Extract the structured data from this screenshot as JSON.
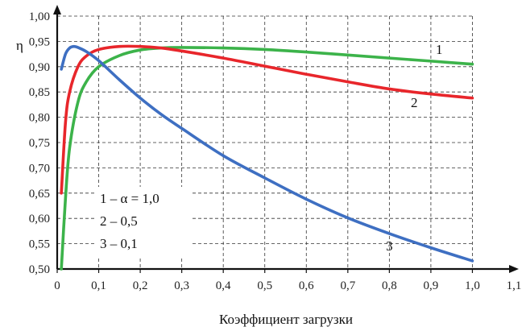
{
  "chart_data": {
    "type": "line",
    "xlabel": "Коэффициент загрузки",
    "ylabel": "η",
    "xlim": [
      0,
      1.1
    ],
    "ylim": [
      0.5,
      1.0
    ],
    "xticks": [
      "0",
      "0,1",
      "0,2",
      "0,3",
      "0,4",
      "0,5",
      "0,6",
      "0,7",
      "0,8",
      "0,9",
      "1,0",
      "1,1"
    ],
    "yticks": [
      "0,50",
      "0,55",
      "0,60",
      "0,65",
      "0,70",
      "0,75",
      "0,80",
      "0,85",
      "0,90",
      "0,95",
      "1,00"
    ],
    "grid": true,
    "legend": [
      "1 – α = 1,0",
      "2 – 0,5",
      "3 – 0,1"
    ],
    "series": [
      {
        "name": "1",
        "color": "#3cb34a",
        "x": [
          0.01,
          0.02,
          0.03,
          0.05,
          0.07,
          0.1,
          0.15,
          0.2,
          0.25,
          0.3,
          0.4,
          0.5,
          0.6,
          0.7,
          0.8,
          0.9,
          1.0
        ],
        "y": [
          0.5,
          0.64,
          0.74,
          0.83,
          0.87,
          0.9,
          0.922,
          0.933,
          0.937,
          0.938,
          0.937,
          0.934,
          0.929,
          0.923,
          0.917,
          0.911,
          0.905
        ]
      },
      {
        "name": "2",
        "color": "#e8262b",
        "x": [
          0.01,
          0.02,
          0.03,
          0.05,
          0.07,
          0.1,
          0.15,
          0.2,
          0.25,
          0.3,
          0.4,
          0.5,
          0.6,
          0.7,
          0.8,
          0.9,
          1.0
        ],
        "y": [
          0.65,
          0.79,
          0.85,
          0.9,
          0.921,
          0.934,
          0.94,
          0.94,
          0.937,
          0.931,
          0.917,
          0.901,
          0.885,
          0.87,
          0.856,
          0.846,
          0.838
        ]
      },
      {
        "name": "3",
        "color": "#3e6fc2",
        "x": [
          0.01,
          0.02,
          0.03,
          0.04,
          0.05,
          0.07,
          0.1,
          0.15,
          0.2,
          0.25,
          0.3,
          0.4,
          0.5,
          0.6,
          0.7,
          0.8,
          0.9,
          1.0
        ],
        "y": [
          0.895,
          0.925,
          0.937,
          0.94,
          0.938,
          0.93,
          0.912,
          0.874,
          0.838,
          0.806,
          0.778,
          0.724,
          0.68,
          0.638,
          0.601,
          0.57,
          0.542,
          0.516
        ]
      }
    ]
  }
}
